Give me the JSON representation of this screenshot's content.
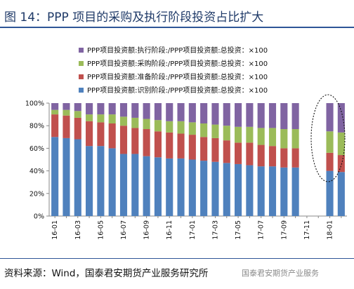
{
  "header": {
    "title": "图 14：PPP 项目的采购及执行阶段投资占比扩大"
  },
  "footer": {
    "source": "资料来源：Wind，国泰君安期货产业服务研究所",
    "watermark": "国泰君安期货产业服务"
  },
  "chart_data": {
    "type": "bar",
    "stacked": true,
    "title": "PPP 项目的采购及执行阶段投资占比扩大",
    "xlabel": "",
    "ylabel": "",
    "ylim": [
      0,
      100
    ],
    "yticks": [
      "0%",
      "20%",
      "40%",
      "60%",
      "80%",
      "100%"
    ],
    "grid": false,
    "legend_position": "top",
    "categories": [
      "16-01",
      "16-02",
      "16-03",
      "16-04",
      "16-05",
      "16-06",
      "16-07",
      "16-08",
      "16-09",
      "16-10",
      "16-11",
      "16-12",
      "17-01",
      "17-02",
      "17-03",
      "17-04",
      "17-05",
      "17-06",
      "17-07",
      "17-08",
      "17-09",
      "17-10",
      "17-11",
      "17-12",
      "18-01",
      "18-02"
    ],
    "xtick_labels": [
      "16-01",
      "16-03",
      "16-05",
      "16-07",
      "16-09",
      "16-11",
      "17-01",
      "17-03",
      "17-05",
      "17-07",
      "17-09",
      "17-11",
      "18-01"
    ],
    "series": [
      {
        "name": "PPP项目投资额:识别阶段:/PPP项目投资额:总投资：×100",
        "color": "#4f81bd",
        "values": [
          70,
          69,
          68,
          62,
          62,
          60,
          55,
          55,
          53,
          52,
          51,
          51,
          50,
          49,
          48,
          47,
          46,
          45,
          44,
          44,
          43,
          43,
          null,
          null,
          40,
          39
        ]
      },
      {
        "name": "PPP项目投资额:准备阶段:/PPP项目投资额:总投资：×100",
        "color": "#c0504d",
        "values": [
          20,
          20,
          19,
          22,
          21,
          22,
          25,
          23,
          24,
          23,
          23,
          22,
          22,
          21,
          21,
          20,
          19,
          20,
          19,
          18,
          17,
          17,
          null,
          null,
          16,
          15
        ]
      },
      {
        "name": "PPP项目投资额:采购阶段:/PPP项目投资额:总投资：×100",
        "color": "#9bbb59",
        "values": [
          4,
          5,
          6,
          6,
          7,
          8,
          8,
          9,
          9,
          10,
          10,
          11,
          11,
          12,
          12,
          13,
          14,
          14,
          15,
          16,
          17,
          17,
          null,
          null,
          19,
          20
        ]
      },
      {
        "name": "PPP项目投资额:执行阶段:/PPP项目投资额:总投资：×100",
        "color": "#8064a2",
        "values": [
          6,
          6,
          7,
          10,
          10,
          10,
          12,
          13,
          14,
          15,
          16,
          16,
          17,
          18,
          19,
          20,
          21,
          21,
          22,
          22,
          23,
          23,
          null,
          null,
          25,
          26
        ]
      }
    ]
  }
}
